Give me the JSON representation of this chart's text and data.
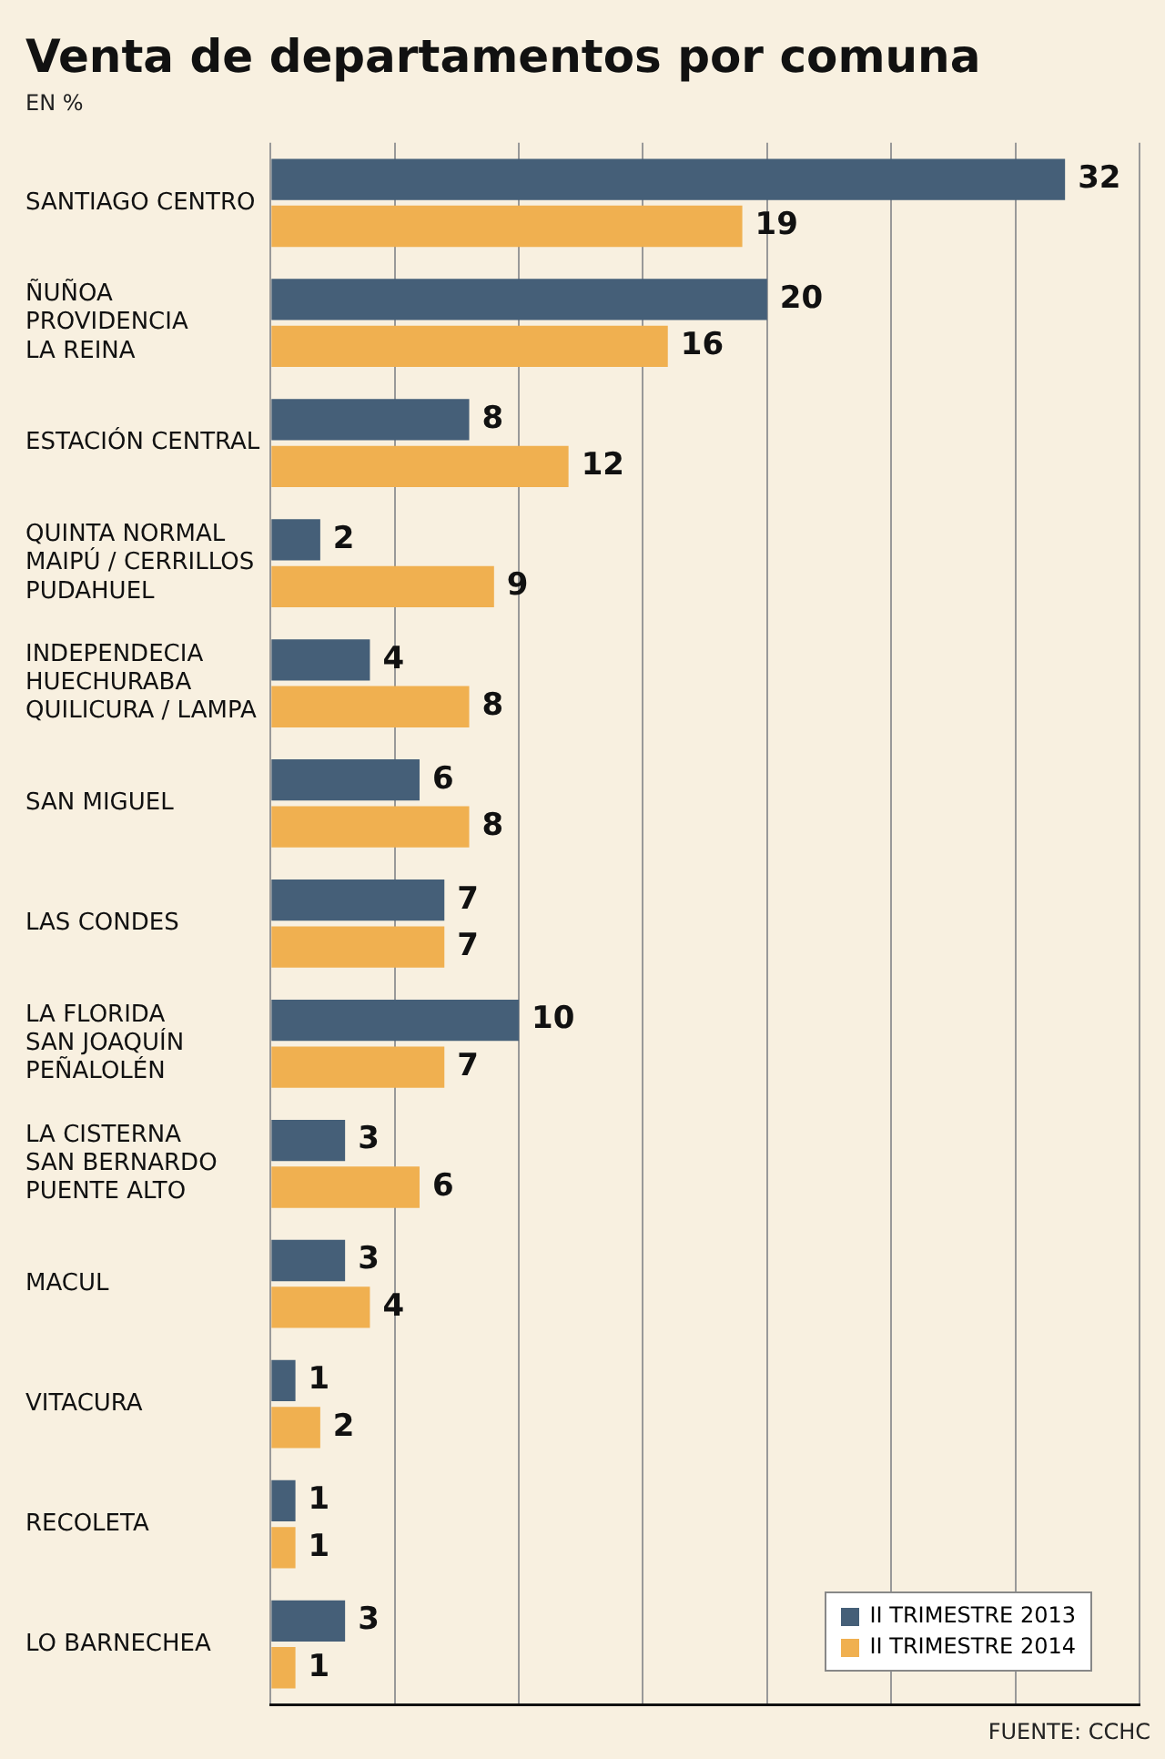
{
  "chart_data": {
    "type": "bar",
    "orientation": "horizontal",
    "title": "Venta de departamentos por comuna",
    "subtitle": "EN %",
    "categories": [
      "SANTIAGO CENTRO",
      "ÑUÑOA\nPROVIDENCIA\nLA REINA",
      "ESTACIÓN CENTRAL",
      "QUINTA NORMAL\nMAIPÚ / CERRILLOS\nPUDAHUEL",
      "INDEPENDECIA\nHUECHURABA\nQUILICURA / LAMPA",
      "SAN MIGUEL",
      "LAS CONDES",
      "LA FLORIDA\nSAN JOAQUÍN\nPEÑALOLÉN",
      "LA CISTERNA\nSAN BERNARDO\nPUENTE ALTO",
      "MACUL",
      "VITACURA",
      "RECOLETA",
      "LO BARNECHEA"
    ],
    "series": [
      {
        "name": "II TRIMESTRE 2013",
        "color": "#455f78",
        "values": [
          32,
          20,
          8,
          2,
          4,
          6,
          7,
          10,
          3,
          3,
          1,
          1,
          3
        ]
      },
      {
        "name": "II TRIMESTRE 2014",
        "color": "#f0b050",
        "values": [
          19,
          16,
          12,
          9,
          8,
          8,
          7,
          7,
          6,
          4,
          2,
          1,
          1
        ]
      }
    ],
    "xlim": [
      0,
      35
    ],
    "xticks": [
      {
        "value": 0,
        "label": null
      },
      {
        "value": 5,
        "label": null
      },
      {
        "value": 10,
        "label": null
      },
      {
        "value": 15,
        "label": null
      },
      {
        "value": 20,
        "label": null
      },
      {
        "value": 25,
        "label": null
      },
      {
        "value": 30,
        "label": null
      },
      {
        "value": 35,
        "label": null
      }
    ],
    "tick_labels": "y",
    "grid": "x",
    "legend": "bottom right",
    "data_labels": true,
    "annotations": [
      "FUENTE: CCHC"
    ]
  }
}
